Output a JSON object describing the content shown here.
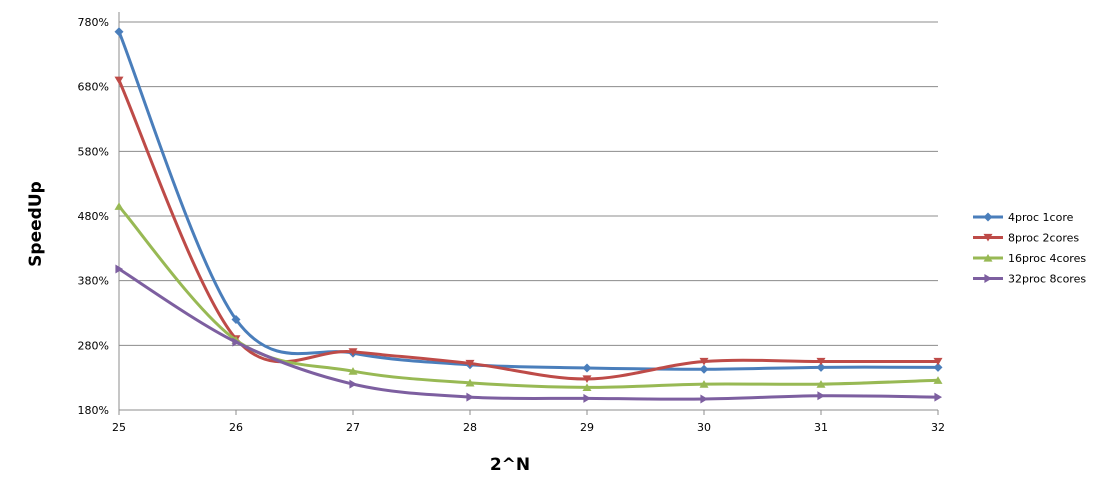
{
  "chart_data": {
    "type": "line",
    "title": "",
    "xlabel": "2^N",
    "ylabel": "SpeedUp",
    "x": [
      25,
      26,
      27,
      28,
      29,
      30,
      31,
      32
    ],
    "xlim": [
      25,
      32
    ],
    "xticks": [
      "25",
      "26",
      "27",
      "28",
      "29",
      "30",
      "31",
      "32"
    ],
    "ylim": [
      180,
      780
    ],
    "yticks": [
      "180%",
      "280%",
      "380%",
      "480%",
      "580%",
      "680%",
      "780%"
    ],
    "grid": true,
    "smooth": true,
    "legend_position": "right",
    "series": [
      {
        "name": "4proc 1core",
        "color": "#4a7ebb",
        "marker": "diamond",
        "values": [
          765,
          320,
          268,
          250,
          245,
          243,
          246,
          246
        ]
      },
      {
        "name": "8proc 2cores",
        "color": "#be4b48",
        "marker": "triangle-down",
        "values": [
          690,
          290,
          270,
          252,
          228,
          255,
          255,
          255
        ]
      },
      {
        "name": "16proc 4cores",
        "color": "#98b954",
        "marker": "triangle-up",
        "values": [
          495,
          288,
          240,
          222,
          215,
          220,
          220,
          226
        ]
      },
      {
        "name": "32proc 8cores",
        "color": "#7d5fa0",
        "marker": "triangle-right",
        "values": [
          398,
          285,
          220,
          200,
          198,
          197,
          202,
          200
        ]
      }
    ]
  }
}
